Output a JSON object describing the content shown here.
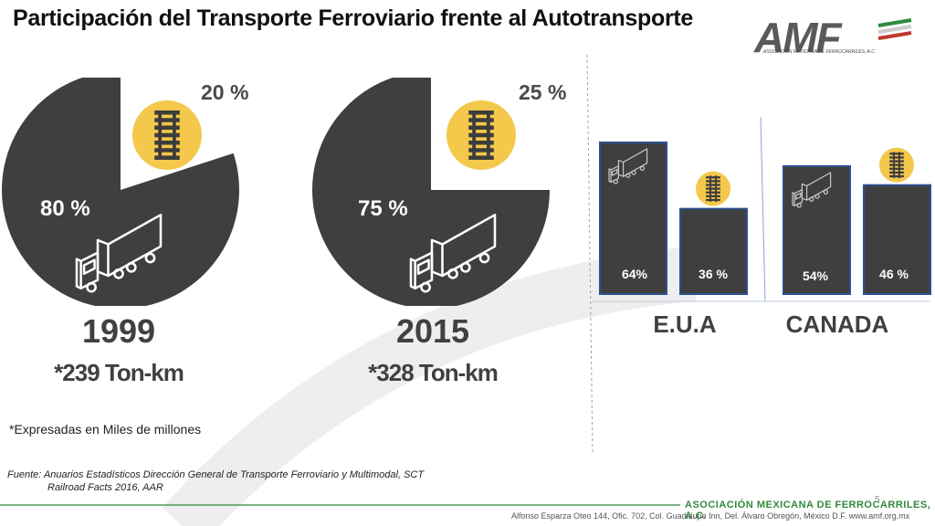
{
  "title": "Participación del Transporte Ferroviario frente al Autotransporte",
  "logo": {
    "text": "AMF",
    "subtitle": "ASOCIACIÓN MEXICANA DE FERROCARRILES, A.C."
  },
  "colors": {
    "dark": "#3f3f3f",
    "rail_circle": "#f3c84b",
    "bar_border": "#2e4f8f",
    "footer_green": "#2f8a3b"
  },
  "chart_data": [
    {
      "type": "pie",
      "year": "1999",
      "tons": "*239 Ton-km",
      "slices": [
        {
          "label": "80 %",
          "value": 80,
          "mode": "Autotransporte",
          "icon": "truck-icon"
        },
        {
          "label": "20 %",
          "value": 20,
          "mode": "Ferroviario",
          "icon": "rail-track-icon"
        }
      ]
    },
    {
      "type": "pie",
      "year": "2015",
      "tons": "*328 Ton-km",
      "slices": [
        {
          "label": "75 %",
          "value": 75,
          "mode": "Autotransporte",
          "icon": "truck-icon"
        },
        {
          "label": "25 %",
          "value": 25,
          "mode": "Ferroviario",
          "icon": "rail-track-icon"
        }
      ]
    },
    {
      "type": "bar",
      "country": "E.U.A",
      "categories": [
        "Autotransporte",
        "Ferroviario"
      ],
      "values": [
        64,
        36
      ],
      "labels": [
        "64%",
        "36 %"
      ]
    },
    {
      "type": "bar",
      "country": "CANADA",
      "categories": [
        "Autotransporte",
        "Ferroviario"
      ],
      "values": [
        54,
        46
      ],
      "labels": [
        "54%",
        "46 %"
      ]
    }
  ],
  "note": "*Expresadas en Miles de millones",
  "source": {
    "line1": "Fuente:  Anuarios Estadísticos Dirección General de Transporte Ferroviario y Multimodal,  SCT",
    "line2": "Railroad Facts 2016, AAR"
  },
  "footer": {
    "org": "ASOCIACIÓN MEXICANA DE FERROCARRILES, A.C.",
    "address": "Alfonso Esparza Oteo 144, Ofic. 702, Col. Guadalupe Inn, Del. Álvaro Obregón, México D.F. www.amf.org.mx",
    "page": "5"
  }
}
